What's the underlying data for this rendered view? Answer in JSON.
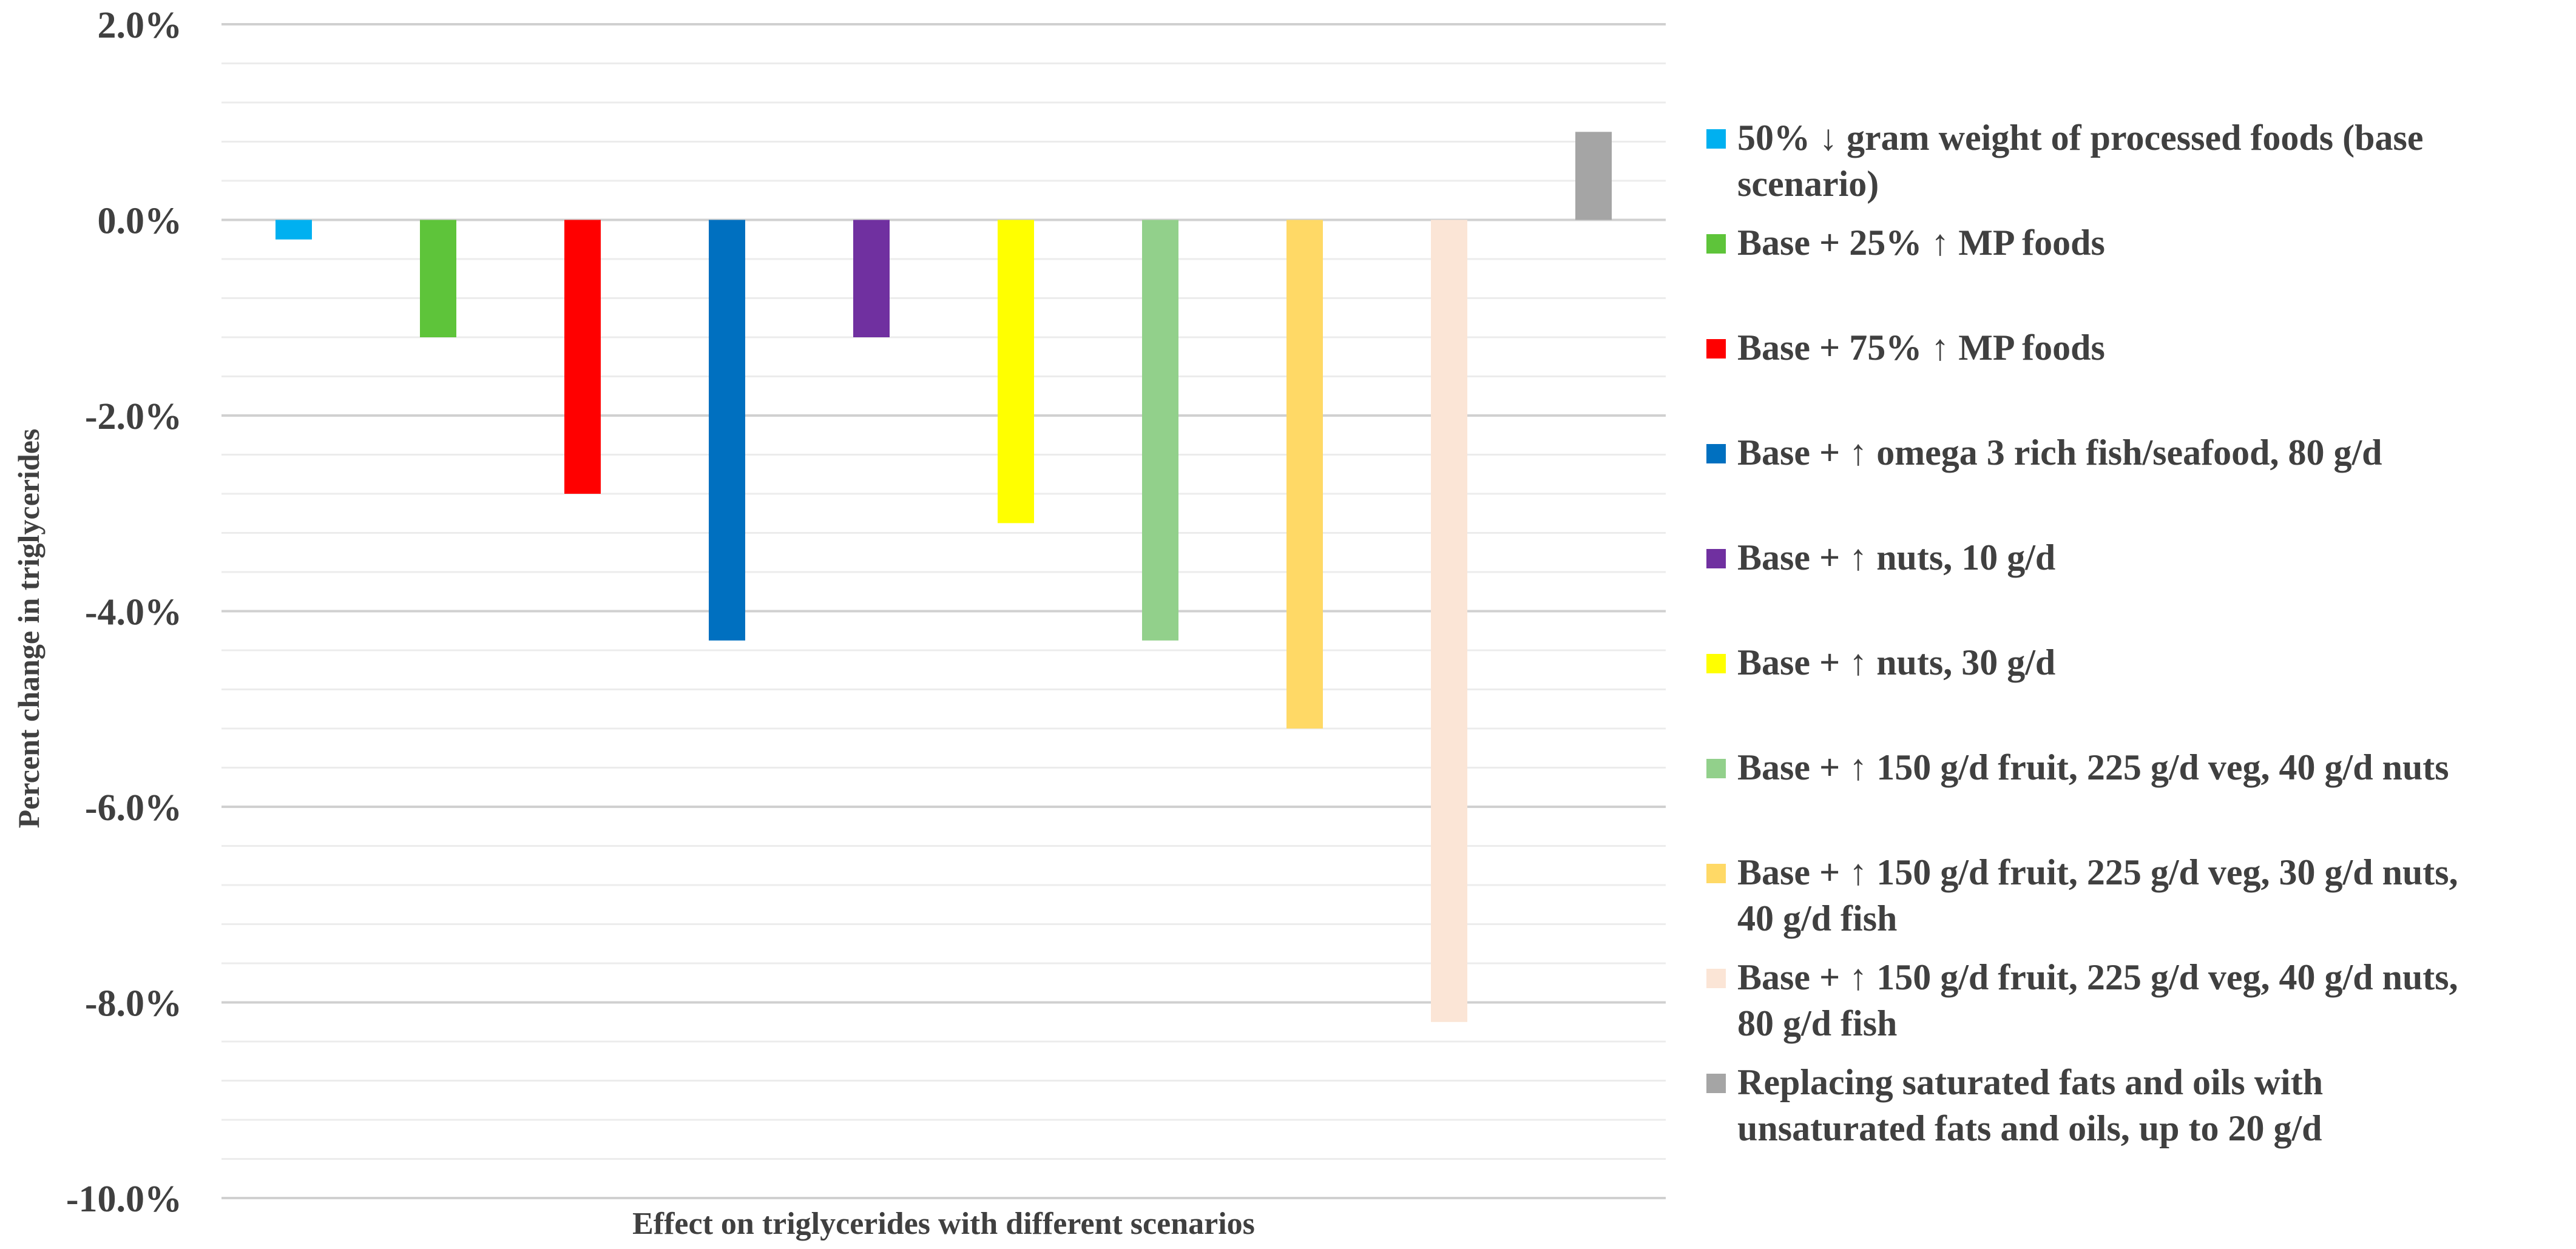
{
  "chart_data": {
    "type": "bar",
    "title": "",
    "xlabel": "Effect on triglycerides with different scenarios",
    "ylabel": "Percent change in triglycerides",
    "ylim": [
      -10,
      2
    ],
    "y_ticks": [
      2,
      0,
      -2,
      -4,
      -6,
      -8,
      -10
    ],
    "y_tick_labels": [
      "2.0%",
      "0.0%",
      "-2.0%",
      "-4.0%",
      "-6.0%",
      "-8.0%",
      "-10.0%"
    ],
    "grid": true,
    "legend_position": "right",
    "series": [
      {
        "name": "50% ↓ gram weight of processed foods (base scenario)",
        "lines": [
          "50% ↓ gram weight of processed foods (base",
          "scenario)"
        ],
        "value": -0.2,
        "color": "#00b0f0"
      },
      {
        "name": "Base + 25% ↑ MP foods",
        "lines": [
          "Base + 25% ↑ MP foods"
        ],
        "value": -1.2,
        "color": "#5ec43a"
      },
      {
        "name": "Base + 75% ↑ MP foods",
        "lines": [
          "Base + 75% ↑ MP foods"
        ],
        "value": -2.8,
        "color": "#ff0000"
      },
      {
        "name": "Base + ↑ omega 3 rich fish/seafood, 80 g/d",
        "lines": [
          "Base + ↑ omega 3 rich fish/seafood, 80 g/d"
        ],
        "value": -4.3,
        "color": "#0070c0"
      },
      {
        "name": "Base + ↑ nuts, 10 g/d",
        "lines": [
          "Base + ↑ nuts, 10 g/d"
        ],
        "value": -1.2,
        "color": "#7030a0"
      },
      {
        "name": "Base + ↑ nuts, 30 g/d",
        "lines": [
          "Base + ↑ nuts, 30 g/d"
        ],
        "value": -3.1,
        "color": "#ffff00"
      },
      {
        "name": "Base + ↑ 150 g/d fruit, 225 g/d veg, 40 g/d nuts",
        "lines": [
          "Base + ↑ 150 g/d fruit, 225 g/d veg, 40 g/d nuts"
        ],
        "value": -4.3,
        "color": "#92d08b"
      },
      {
        "name": "Base + ↑ 150 g/d fruit, 225 g/d veg, 30 g/d nuts, 40 g/d fish",
        "lines": [
          "Base + ↑ 150 g/d fruit, 225 g/d veg, 30 g/d nuts,",
          "40 g/d fish"
        ],
        "value": -5.2,
        "color": "#ffd966"
      },
      {
        "name": "Base + ↑ 150 g/d fruit, 225 g/d veg, 40 g/d nuts, 80 g/d fish",
        "lines": [
          "Base + ↑ 150 g/d fruit, 225 g/d veg, 40 g/d nuts,",
          "80 g/d fish"
        ],
        "value": -8.2,
        "color": "#fbe5d6"
      },
      {
        "name": "Replacing saturated fats and oils with unsaturated fats and oils, up to 20 g/d",
        "lines": [
          "Replacing saturated fats and oils with",
          "unsaturated fats and oils, up to 20 g/d"
        ],
        "value": 0.9,
        "color": "#a5a5a5"
      }
    ]
  }
}
